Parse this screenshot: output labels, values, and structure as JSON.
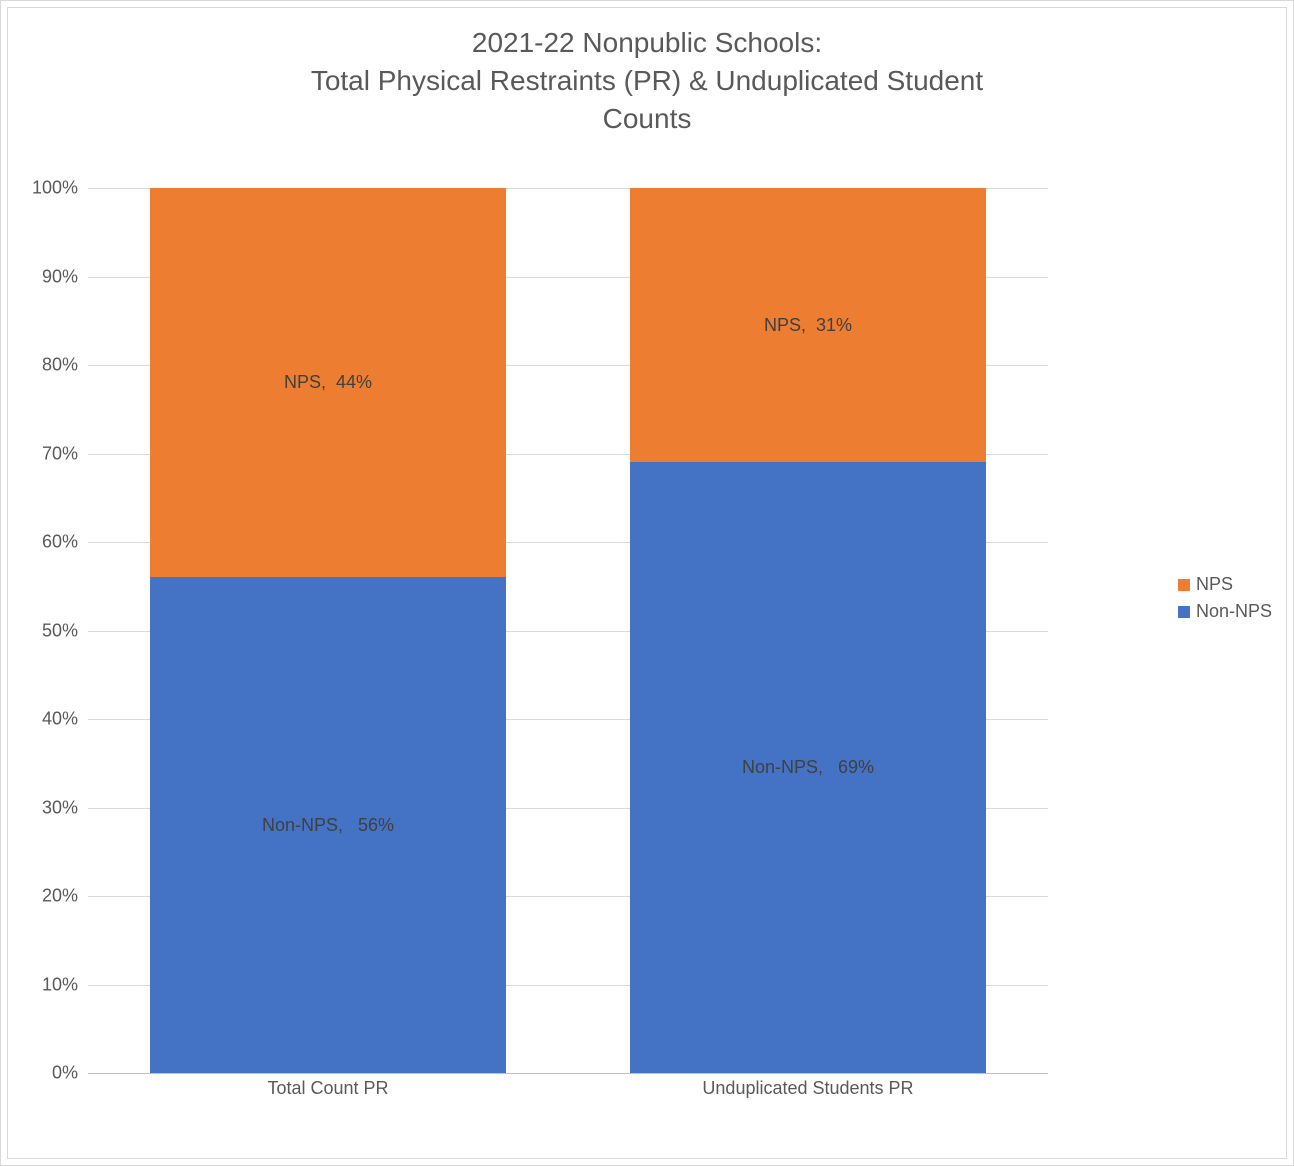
{
  "chart": {
    "type": "stacked-bar-100",
    "title_line1": "2021-22 Nonpublic Schools:",
    "title_line2": "Total Physical Restraints (PR) & Unduplicated Student",
    "title_line3": "Counts",
    "title_fontsize": 28,
    "title_color": "#595959",
    "background_color": "#ffffff",
    "border_color": "#d9d9d9",
    "grid_color": "#d9d9d9",
    "axis_color": "#bfbfbf",
    "label_color": "#595959",
    "label_fontsize": 18,
    "datalabel_color": "#404040",
    "datalabel_fontsize": 18,
    "ylim": [
      0,
      100
    ],
    "ytick_step": 10,
    "ytick_suffix": "%",
    "bar_width_ratio": 0.74,
    "categories": [
      "Total Count PR",
      "Unduplicated Students PR"
    ],
    "series": [
      {
        "name": "Non-NPS",
        "color": "#4472c4"
      },
      {
        "name": "NPS",
        "color": "#ed7d31"
      }
    ],
    "values": {
      "Non-NPS": [
        56,
        69
      ],
      "NPS": [
        44,
        31
      ]
    },
    "datalabels": {
      "Non-NPS": [
        "Non-NPS,   56%",
        "Non-NPS,   69%"
      ],
      "NPS": [
        "NPS,  44%",
        "NPS,  31%"
      ]
    },
    "legend_order": [
      "NPS",
      "Non-NPS"
    ],
    "yticks": [
      "0%",
      "10%",
      "20%",
      "30%",
      "40%",
      "50%",
      "60%",
      "70%",
      "80%",
      "90%",
      "100%"
    ]
  }
}
